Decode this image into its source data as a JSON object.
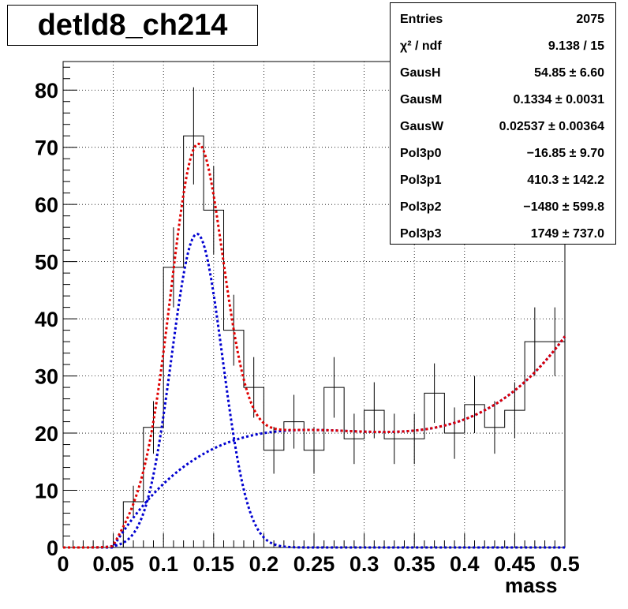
{
  "title": "detld8_ch214",
  "stats": [
    {
      "key": "Entries",
      "value": "2075"
    },
    {
      "key": "χ² / ndf",
      "value": "9.138 / 15"
    },
    {
      "key": "GausH",
      "value": "54.85 ± 6.60"
    },
    {
      "key": "GausM",
      "value": "0.1334 ± 0.0031"
    },
    {
      "key": "GausW",
      "value": "0.02537 ± 0.00364"
    },
    {
      "key": "Pol3p0",
      "value": "−16.85 ± 9.70"
    },
    {
      "key": "Pol3p1",
      "value": "410.3 ± 142.2"
    },
    {
      "key": "Pol3p2",
      "value": "−1480 ± 599.8"
    },
    {
      "key": "Pol3p3",
      "value": "1749 ± 737.0"
    }
  ],
  "chart_data": {
    "type": "bar",
    "xlabel": "mass",
    "ylabel": "",
    "xlim": [
      0,
      0.5
    ],
    "ylim": [
      0,
      85
    ],
    "grid": true,
    "x_ticks": [
      "0",
      "0.05",
      "0.1",
      "0.15",
      "0.2",
      "0.25",
      "0.3",
      "0.35",
      "0.4",
      "0.45",
      "0.5"
    ],
    "y_ticks": [
      "0",
      "10",
      "20",
      "30",
      "40",
      "50",
      "60",
      "70",
      "80"
    ],
    "bin_edges": [
      0,
      0.02,
      0.04,
      0.06,
      0.08,
      0.1,
      0.12,
      0.14,
      0.16,
      0.18,
      0.2,
      0.22,
      0.24,
      0.26,
      0.28,
      0.3,
      0.32,
      0.34,
      0.36,
      0.38,
      0.4,
      0.42,
      0.44,
      0.46,
      0.48,
      0.5
    ],
    "values": [
      0,
      0,
      0,
      8,
      21,
      49,
      72,
      59,
      38,
      28,
      17,
      22,
      17,
      28,
      19,
      24,
      19,
      19,
      27,
      20,
      25,
      21,
      24,
      36,
      36
    ],
    "errors": [
      0,
      0,
      0,
      2.8,
      4.6,
      7.0,
      8.5,
      7.7,
      6.2,
      5.3,
      4.1,
      4.7,
      4.1,
      5.3,
      4.4,
      4.9,
      4.4,
      4.4,
      5.2,
      4.5,
      5.0,
      4.6,
      4.9,
      6.0,
      6.0
    ],
    "fit": {
      "gaus": {
        "height": 54.85,
        "mean": 0.1334,
        "width": 0.02537
      },
      "pol3": [
        -16.85,
        410.3,
        -1480,
        1749
      ],
      "colors": {
        "total": "#e00000",
        "components": "#0000d0"
      }
    }
  }
}
